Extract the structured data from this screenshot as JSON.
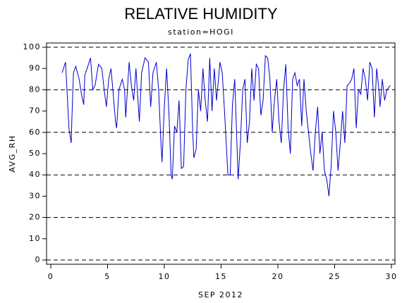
{
  "chart_data": {
    "type": "line",
    "title": "RELATIVE HUMIDITY",
    "subtitle": "station=HOGI",
    "x_label": "SEP 2012",
    "y_label": "AVG_RH",
    "x": [
      1.0,
      1.3,
      1.6,
      1.8,
      1.85,
      2.0,
      2.2,
      2.5,
      2.7,
      2.9,
      3.0,
      3.2,
      3.5,
      3.7,
      3.9,
      4.2,
      4.5,
      4.7,
      4.9,
      5.1,
      5.3,
      5.5,
      5.7,
      5.8,
      6.0,
      6.3,
      6.5,
      6.6,
      6.9,
      7.1,
      7.3,
      7.5,
      7.8,
      8.0,
      8.3,
      8.6,
      8.8,
      9.0,
      9.3,
      9.5,
      9.7,
      9.8,
      10.0,
      10.2,
      10.4,
      10.6,
      10.7,
      10.9,
      11.1,
      11.3,
      11.5,
      11.7,
      11.9,
      12.1,
      12.3,
      12.5,
      12.6,
      12.8,
      13.0,
      13.2,
      13.4,
      13.6,
      13.8,
      14.0,
      14.2,
      14.4,
      14.6,
      14.9,
      15.1,
      15.3,
      15.4,
      15.6,
      15.8,
      16.0,
      16.2,
      16.5,
      16.7,
      16.9,
      17.1,
      17.3,
      17.5,
      17.7,
      17.9,
      18.1,
      18.3,
      18.5,
      18.7,
      18.9,
      19.1,
      19.3,
      19.5,
      19.7,
      19.9,
      20.1,
      20.3,
      20.5,
      20.7,
      20.9,
      21.1,
      21.3,
      21.5,
      21.7,
      21.9,
      22.1,
      22.3,
      22.5,
      22.7,
      22.9,
      23.1,
      23.3,
      23.5,
      23.7,
      23.9,
      24.1,
      24.3,
      24.5,
      24.7,
      24.9,
      25.1,
      25.3,
      25.5,
      25.7,
      25.9,
      26.1,
      26.3,
      26.5,
      26.7,
      26.9,
      27.1,
      27.3,
      27.5,
      27.7,
      27.9,
      28.1,
      28.3,
      28.5,
      28.7,
      28.9,
      29.0,
      29.2,
      29.4,
      29.6,
      29.9
    ],
    "series": [
      {
        "name": "AVG_RH",
        "color": "#0000cc",
        "values": [
          88,
          93,
          62,
          55,
          65,
          88,
          91,
          85,
          78,
          73,
          87,
          90,
          95,
          80,
          82,
          92,
          90,
          80,
          72,
          85,
          90,
          78,
          65,
          62,
          80,
          85,
          80,
          67,
          93,
          82,
          75,
          90,
          65,
          88,
          95,
          93,
          72,
          88,
          93,
          80,
          55,
          46,
          72,
          90,
          70,
          40,
          38,
          63,
          60,
          75,
          43,
          44,
          80,
          94,
          97,
          60,
          48,
          52,
          80,
          70,
          90,
          75,
          65,
          95,
          70,
          90,
          75,
          93,
          88,
          70,
          60,
          40,
          40,
          73,
          85,
          38,
          55,
          80,
          85,
          55,
          65,
          90,
          75,
          92,
          90,
          68,
          75,
          96,
          95,
          85,
          60,
          75,
          85,
          65,
          55,
          80,
          92,
          62,
          50,
          85,
          88,
          82,
          85,
          63,
          85,
          70,
          60,
          50,
          42,
          60,
          72,
          50,
          60,
          42,
          38,
          30,
          45,
          70,
          60,
          42,
          55,
          70,
          55,
          82,
          83,
          85,
          90,
          62,
          80,
          78,
          90,
          85,
          75,
          93,
          90,
          67,
          90,
          80,
          72,
          85,
          75,
          80,
          82
        ]
      }
    ],
    "xlim": [
      0,
      30
    ],
    "xticks": [
      0,
      5,
      10,
      15,
      20,
      25,
      30
    ],
    "ylim": [
      0,
      100
    ],
    "yticks": [
      0,
      10,
      20,
      30,
      40,
      50,
      60,
      70,
      80,
      90,
      100
    ],
    "grid_yticks": [
      0,
      20,
      40,
      60,
      80,
      100
    ]
  }
}
